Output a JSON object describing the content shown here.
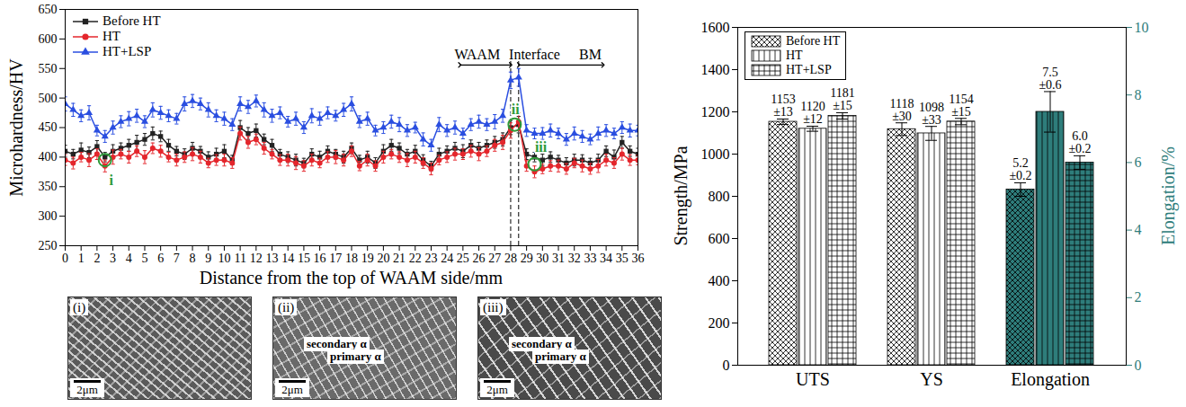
{
  "chart_data": [
    {
      "type": "line",
      "x_label": "Distance from the top of WAAM side/mm",
      "y_label": "Microhardness/HV",
      "x": [
        0,
        0.5,
        1,
        1.5,
        2,
        2.5,
        3,
        3.5,
        4,
        4.5,
        5,
        5.5,
        6,
        6.5,
        7,
        7.5,
        8,
        8.5,
        9,
        9.5,
        10,
        10.5,
        11,
        11.5,
        12,
        12.5,
        13,
        13.5,
        14,
        14.5,
        15,
        15.5,
        16,
        16.5,
        17,
        17.5,
        18,
        18.5,
        19,
        19.5,
        20,
        20.5,
        21,
        21.5,
        22,
        22.5,
        23,
        23.5,
        24,
        24.5,
        25,
        25.5,
        26,
        26.5,
        27,
        27.5,
        28,
        28.5,
        29,
        29.5,
        30,
        30.5,
        31,
        31.5,
        32,
        32.5,
        33,
        33.5,
        34,
        34.5,
        35,
        35.5,
        36
      ],
      "xlim": [
        0,
        36
      ],
      "xticks": [
        0,
        1,
        2,
        3,
        4,
        5,
        6,
        7,
        8,
        9,
        10,
        11,
        12,
        13,
        14,
        15,
        16,
        17,
        18,
        19,
        20,
        21,
        22,
        23,
        24,
        25,
        26,
        27,
        28,
        29,
        30,
        31,
        32,
        33,
        34,
        35,
        36
      ],
      "ylim": [
        250,
        650
      ],
      "yticks": [
        250,
        300,
        350,
        400,
        450,
        500,
        550,
        600,
        650
      ],
      "legend": "top-left",
      "series": [
        {
          "name": "Before HT",
          "color": "#222222",
          "marker": "square",
          "values": [
            410,
            405,
            412,
            408,
            418,
            400,
            410,
            415,
            420,
            425,
            430,
            440,
            435,
            420,
            410,
            405,
            415,
            410,
            400,
            405,
            410,
            395,
            450,
            440,
            445,
            430,
            420,
            405,
            400,
            395,
            390,
            405,
            400,
            410,
            405,
            400,
            415,
            395,
            400,
            390,
            410,
            420,
            415,
            405,
            410,
            395,
            385,
            405,
            410,
            415,
            410,
            420,
            415,
            420,
            425,
            430,
            450,
            455,
            405,
            400,
            395,
            400,
            395,
            390,
            395,
            395,
            390,
            395,
            410,
            400,
            425,
            410,
            405
          ],
          "errors": [
            10,
            8,
            12,
            9,
            10,
            8,
            11,
            9,
            10,
            12,
            10,
            11,
            9,
            10,
            8,
            9,
            10,
            8,
            9,
            10,
            11,
            8,
            12,
            10,
            11,
            9,
            10,
            8,
            9,
            10,
            8,
            9,
            10,
            9,
            8,
            10,
            9,
            8,
            10,
            9,
            11,
            10,
            9,
            8,
            10,
            9,
            8,
            10,
            9,
            10,
            11,
            9,
            10,
            9,
            10,
            11,
            12,
            14,
            9,
            8,
            10,
            9,
            8,
            9,
            10,
            9,
            8,
            10,
            9,
            12,
            10,
            9,
            10
          ]
        },
        {
          "name": "HT",
          "color": "#e4262c",
          "marker": "circle",
          "values": [
            395,
            390,
            400,
            395,
            405,
            385,
            400,
            405,
            400,
            410,
            400,
            415,
            410,
            400,
            395,
            400,
            405,
            400,
            390,
            395,
            395,
            390,
            440,
            425,
            430,
            415,
            405,
            395,
            395,
            390,
            385,
            395,
            390,
            400,
            400,
            395,
            410,
            385,
            395,
            385,
            400,
            405,
            400,
            395,
            400,
            390,
            380,
            395,
            400,
            405,
            405,
            410,
            405,
            410,
            420,
            425,
            445,
            460,
            385,
            375,
            380,
            385,
            385,
            380,
            390,
            385,
            380,
            385,
            395,
            390,
            405,
            395,
            395
          ],
          "errors": [
            9,
            10,
            8,
            11,
            9,
            10,
            12,
            8,
            10,
            9,
            11,
            9,
            10,
            8,
            10,
            9,
            11,
            10,
            8,
            9,
            10,
            9,
            11,
            10,
            9,
            10,
            8,
            9,
            10,
            11,
            9,
            10,
            8,
            9,
            11,
            10,
            9,
            8,
            10,
            9,
            10,
            8,
            9,
            11,
            10,
            9,
            10,
            8,
            9,
            10,
            9,
            10,
            11,
            9,
            10,
            12,
            13,
            15,
            9,
            10,
            8,
            9,
            10,
            9,
            8,
            10,
            9,
            11,
            10,
            9,
            10,
            9,
            8
          ]
        },
        {
          "name": "HT+LSP",
          "color": "#2a4ee0",
          "marker": "triangle",
          "values": [
            490,
            480,
            470,
            475,
            445,
            435,
            450,
            460,
            465,
            470,
            460,
            480,
            475,
            470,
            465,
            490,
            495,
            490,
            480,
            470,
            465,
            455,
            490,
            485,
            495,
            480,
            470,
            475,
            460,
            465,
            450,
            470,
            465,
            475,
            470,
            480,
            490,
            460,
            465,
            445,
            450,
            460,
            455,
            445,
            450,
            430,
            420,
            455,
            445,
            450,
            440,
            455,
            460,
            455,
            460,
            470,
            530,
            535,
            445,
            440,
            440,
            445,
            440,
            430,
            440,
            435,
            430,
            440,
            445,
            440,
            450,
            445,
            445
          ],
          "errors": [
            12,
            11,
            10,
            12,
            9,
            10,
            11,
            10,
            12,
            11,
            10,
            12,
            11,
            10,
            9,
            12,
            11,
            10,
            12,
            10,
            11,
            10,
            12,
            11,
            10,
            12,
            11,
            10,
            9,
            11,
            10,
            12,
            11,
            10,
            9,
            11,
            12,
            10,
            11,
            9,
            10,
            11,
            12,
            10,
            9,
            11,
            10,
            12,
            10,
            11,
            9,
            10,
            11,
            10,
            12,
            11,
            14,
            15,
            10,
            9,
            10,
            11,
            9,
            10,
            11,
            10,
            9,
            11,
            10,
            9,
            10,
            11,
            9
          ]
        }
      ],
      "annotations": [
        {
          "text": "WAAM",
          "x": 25.9,
          "y": 565
        },
        {
          "text": "Interface",
          "x": 29.5,
          "y": 565
        },
        {
          "text": "BM",
          "x": 33,
          "y": 565
        }
      ],
      "region_arrows": [
        {
          "x1": 24.8,
          "x2": 28,
          "y": 556
        },
        {
          "x1": 28.5,
          "x2": 33.8,
          "y": 556
        }
      ],
      "interface_lines": [
        28,
        28.5
      ],
      "points": [
        {
          "text": "i",
          "x": 2.5,
          "y": 395,
          "label_x": 2.9,
          "label_y": 360
        },
        {
          "text": "ii",
          "x": 28.25,
          "y": 455,
          "label_x": 28.3,
          "label_y": 481
        },
        {
          "text": "iii",
          "x": 29.5,
          "y": 388,
          "label_x": 29.9,
          "label_y": 417
        }
      ]
    },
    {
      "type": "bar",
      "y_label": "Strength/MPa",
      "y2_label": "Elongation/%",
      "categories": [
        "UTS",
        "YS",
        "Elongation"
      ],
      "ylim": [
        0,
        1600
      ],
      "yticks": [
        0,
        200,
        400,
        600,
        800,
        1000,
        1200,
        1400,
        1600
      ],
      "y2lim": [
        0,
        10
      ],
      "y2ticks": [
        0,
        2,
        4,
        6,
        8,
        10
      ],
      "legend": "top-left",
      "data_labels": true,
      "series": [
        {
          "name": "Before HT",
          "color": "#ffffff",
          "values": [
            1153,
            1118,
            null
          ],
          "errors": [
            13,
            30,
            null
          ],
          "value_labels": [
            "1153\n±13",
            "1118\n±30",
            null
          ]
        },
        {
          "name": "HT",
          "color": "#ffffff",
          "values": [
            1120,
            1098,
            null
          ],
          "errors": [
            12,
            33,
            null
          ],
          "value_labels": [
            "1120\n±12",
            "1098\n±33",
            null
          ]
        },
        {
          "name": "HT+LSP",
          "color": "#ffffff",
          "values": [
            1181,
            1154,
            null
          ],
          "errors": [
            15,
            15,
            null
          ],
          "value_labels": [
            "1181\n±15",
            "1154\n±15",
            null
          ]
        },
        {
          "name": "Before HT",
          "axis": "y2",
          "color": "#2e7d7b",
          "values": [
            null,
            null,
            5.2
          ],
          "errors": [
            null,
            null,
            0.2
          ],
          "value_labels": [
            null,
            null,
            "5.2\n±0.2"
          ]
        },
        {
          "name": "HT",
          "axis": "y2",
          "color": "#2e7d7b",
          "values": [
            null,
            null,
            7.5
          ],
          "errors": [
            null,
            null,
            0.6
          ],
          "value_labels": [
            null,
            null,
            "7.5\n±0.6"
          ]
        },
        {
          "name": "HT+LSP",
          "axis": "y2",
          "color": "#2e7d7b",
          "values": [
            null,
            null,
            6.0
          ],
          "errors": [
            null,
            null,
            0.2
          ],
          "value_labels": [
            null,
            null,
            "6.0\n±0.2"
          ]
        }
      ]
    }
  ],
  "micrographs": [
    {
      "label": "(i)",
      "annotations": [],
      "scale_bar": "2μm"
    },
    {
      "label": "(ii)",
      "annotations": [
        "secondary α",
        "primary α"
      ],
      "scale_bar": "2μm"
    },
    {
      "label": "(iii)",
      "annotations": [
        "secondary α",
        "primary α"
      ],
      "scale_bar": "2μm"
    }
  ]
}
